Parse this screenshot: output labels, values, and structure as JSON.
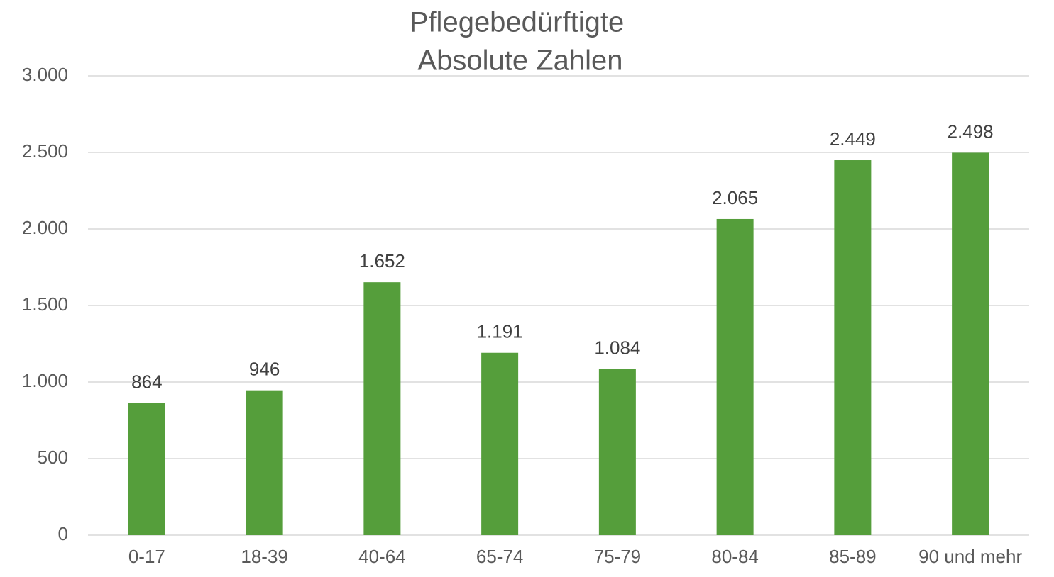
{
  "chart_data": {
    "type": "bar",
    "title": "Pflegebedürftigte",
    "subtitle": "Absolute Zahlen",
    "categories": [
      "0-17",
      "18-39",
      "40-64",
      "65-74",
      "75-79",
      "80-84",
      "85-89",
      "90 und mehr"
    ],
    "values": [
      864,
      946,
      1652,
      1191,
      1084,
      2065,
      2449,
      2498
    ],
    "value_labels": [
      "864",
      "946",
      "1.652",
      "1.191",
      "1.084",
      "2.065",
      "2.449",
      "2.498"
    ],
    "color": "#559e3b",
    "ylim": [
      0,
      3000
    ],
    "yticks": [
      0,
      500,
      {
        "value": 1000,
        "label": "1.000"
      },
      {
        "value": 1500,
        "label": "1.500"
      },
      {
        "value": 2000,
        "label": "2.000"
      },
      {
        "value": 2500,
        "label": "2.500"
      },
      {
        "value": 3000,
        "label": "3.000"
      }
    ],
    "grid": true
  }
}
